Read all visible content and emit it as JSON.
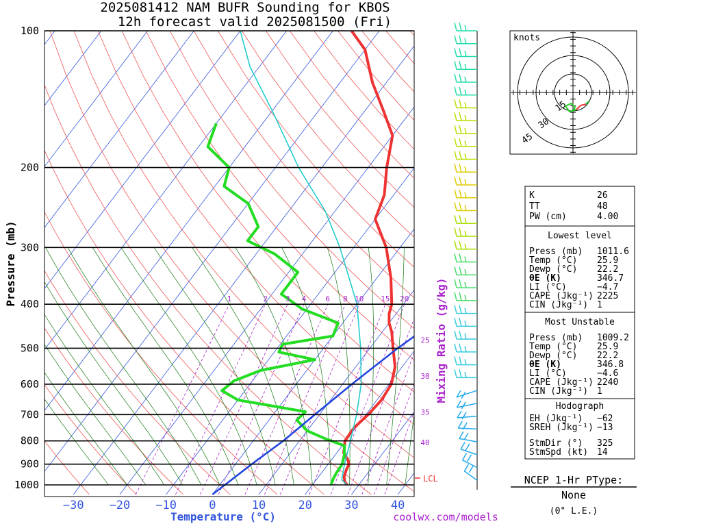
{
  "title": "2025081412 NAM BUFR Sounding for KBOS",
  "subtitle": "12h forecast valid 2025081500 (Fri)",
  "credit": "coolwx.com/models",
  "chart_data": {
    "type": "line",
    "title": "2025081412 NAM BUFR Sounding for KBOS",
    "xlabel": "Temperature (°C)",
    "ylabel": "Pressure (mb)",
    "y2label": "Mixing Ratio (g/kg)",
    "xlim": [
      -40,
      42
    ],
    "ylim": [
      1050,
      100
    ],
    "y_scale": "log",
    "x_ticks": [
      "−30",
      "−20",
      "−10",
      "0",
      "10",
      "20",
      "30",
      "40"
    ],
    "x_tick_values": [
      -30,
      -20,
      -10,
      0,
      10,
      20,
      30,
      40
    ],
    "p_levels": [
      100,
      200,
      300,
      400,
      500,
      600,
      700,
      800,
      900,
      1000
    ],
    "p_labels": [
      "100",
      "200",
      "300",
      "400",
      "500",
      "600",
      "700",
      "800",
      "900",
      "1000"
    ],
    "mixing_ratio_labels": [
      {
        "label": "1",
        "value": 1
      },
      {
        "label": "2",
        "value": 2
      },
      {
        "label": "3",
        "value": 3
      },
      {
        "label": "4",
        "value": 4
      },
      {
        "label": "6",
        "value": 6
      },
      {
        "label": "8",
        "value": 8
      },
      {
        "label": "10",
        "value": 10
      },
      {
        "label": "15",
        "value": 15
      },
      {
        "label": "20",
        "value": 20
      }
    ],
    "mixing_side_labels": [
      "25",
      "30",
      "35",
      "40"
    ],
    "lcl": {
      "label": "LCL",
      "p": 980
    },
    "series": [
      {
        "name": "Temperature",
        "color": "#ee3333",
        "points": [
          [
            1000,
            27.5
          ],
          [
            985,
            26.5
          ],
          [
            960,
            25.5
          ],
          [
            925,
            24.8
          ],
          [
            900,
            24.5
          ],
          [
            880,
            23.5
          ],
          [
            850,
            21.5
          ],
          [
            820,
            20.5
          ],
          [
            800,
            19.8
          ],
          [
            750,
            19.6
          ],
          [
            700,
            20.5
          ],
          [
            650,
            21
          ],
          [
            600,
            20.5
          ],
          [
            550,
            18.5
          ],
          [
            500,
            15
          ],
          [
            460,
            12
          ],
          [
            440,
            10
          ],
          [
            420,
            8.5
          ],
          [
            400,
            7.5
          ],
          [
            350,
            3
          ],
          [
            300,
            -3
          ],
          [
            260,
            -10
          ],
          [
            230,
            -12
          ],
          [
            200,
            -16
          ],
          [
            170,
            -20
          ],
          [
            150,
            -26
          ],
          [
            130,
            -33
          ],
          [
            110,
            -40
          ],
          [
            100,
            -46
          ]
        ]
      },
      {
        "name": "Dewpoint",
        "color": "#22dd22",
        "points": [
          [
            1000,
            24
          ],
          [
            970,
            23.5
          ],
          [
            940,
            23.2
          ],
          [
            900,
            23
          ],
          [
            860,
            22
          ],
          [
            820,
            20.5
          ],
          [
            790,
            15
          ],
          [
            760,
            10
          ],
          [
            720,
            6
          ],
          [
            690,
            6.5
          ],
          [
            650,
            -10
          ],
          [
            620,
            -15
          ],
          [
            590,
            -14
          ],
          [
            560,
            -10
          ],
          [
            530,
            0
          ],
          [
            510,
            -9
          ],
          [
            490,
            -9.5
          ],
          [
            470,
            0
          ],
          [
            440,
            -1
          ],
          [
            410,
            -11
          ],
          [
            380,
            -18
          ],
          [
            340,
            -18
          ],
          [
            310,
            -26
          ],
          [
            290,
            -34
          ],
          [
            270,
            -34
          ],
          [
            240,
            -40
          ],
          [
            220,
            -48
          ],
          [
            200,
            -50
          ],
          [
            180,
            -58
          ],
          [
            160,
            -60
          ]
        ]
      },
      {
        "name": "Parcel",
        "color": "#22cccc",
        "points": [
          [
            1000,
            27.5
          ],
          [
            975,
            25.5
          ],
          [
            900,
            23.5
          ],
          [
            800,
            21
          ],
          [
            700,
            18
          ],
          [
            600,
            14
          ],
          [
            500,
            8
          ],
          [
            400,
            0
          ],
          [
            300,
            -13
          ],
          [
            250,
            -22
          ],
          [
            200,
            -35
          ],
          [
            150,
            -50
          ],
          [
            120,
            -62
          ],
          [
            100,
            -70
          ]
        ]
      },
      {
        "name": "Lifted 0C line",
        "color": "#2244dd",
        "points": [
          [
            1050,
            0
          ],
          [
            900,
            3.5
          ],
          [
            800,
            6.5
          ],
          [
            700,
            9
          ],
          [
            600,
            12
          ],
          [
            500,
            16
          ],
          [
            400,
            22
          ],
          [
            300,
            30
          ]
        ]
      }
    ],
    "wind_barbs_count": 36
  },
  "hodograph": {
    "units_label": "knots",
    "ring_labels": [
      "15",
      "30",
      "45"
    ]
  },
  "indices": {
    "block1": [
      {
        "label": "K",
        "value": "26"
      },
      {
        "label": "TT",
        "value": "48"
      },
      {
        "label": "PW (cm)",
        "value": "4.00"
      }
    ],
    "lowest_level": {
      "header": "Lowest level",
      "rows": [
        {
          "label": "Press (mb)",
          "value": "1011.6"
        },
        {
          "label": "Temp (°C)",
          "value": "25.9"
        },
        {
          "label": "Dewp (°C)",
          "value": "22.2"
        },
        {
          "label": "θE (K)",
          "value": "346.7"
        },
        {
          "label": "LI (°C)",
          "value": "−4.7"
        },
        {
          "label": "CAPE (Jkg⁻¹)",
          "value": "2225"
        },
        {
          "label": "CIN (Jkg⁻¹)",
          "value": "1"
        }
      ]
    },
    "most_unstable": {
      "header": "Most Unstable",
      "rows": [
        {
          "label": "Press (mb)",
          "value": "1009.2"
        },
        {
          "label": "Temp (°C)",
          "value": "25.9"
        },
        {
          "label": "Dewp (°C)",
          "value": "22.2"
        },
        {
          "label": "θE (K)",
          "value": "346.8"
        },
        {
          "label": "LI (°C)",
          "value": "−4.6"
        },
        {
          "label": "CAPE (Jkg⁻¹)",
          "value": "2240"
        },
        {
          "label": "CIN (Jkg⁻¹)",
          "value": "1"
        }
      ]
    },
    "hodograph_box": {
      "header": "Hodograph",
      "rows": [
        {
          "label": "EH (Jkg⁻¹)",
          "value": "−62"
        },
        {
          "label": "SREH (Jkg⁻¹)",
          "value": "−13"
        },
        {
          "label": "StmDir (°)",
          "value": "325"
        },
        {
          "label": "StmSpd (kt)",
          "value": "14"
        }
      ]
    }
  },
  "ptype": {
    "label": "NCEP 1-Hr PType:",
    "value": "None",
    "note": "(0\" L.E.)"
  },
  "colors": {
    "temp": "#ee3333",
    "dewpoint": "#22dd22",
    "parcel": "#22cccc",
    "isotherm": "#3355dd",
    "dry_adiabat": "#ee5555",
    "moist_adiabat": "#117711",
    "mixing_ratio": "#aa22cc",
    "axis_text": "#3355dd"
  }
}
